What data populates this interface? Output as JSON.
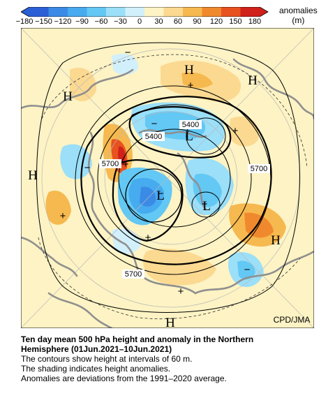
{
  "colorbar": {
    "ticks": [
      "−180",
      "−150",
      "−120",
      "−90",
      "−60",
      "−30",
      "0",
      "30",
      "60",
      "90",
      "120",
      "150",
      "180"
    ],
    "colors": [
      "#2a5fd6",
      "#3b8ae6",
      "#47abef",
      "#63c8f4",
      "#9bdff8",
      "#d2f0fb",
      "#fdf3c4",
      "#fbd991",
      "#f6b94f",
      "#f0892e",
      "#e8521f",
      "#d0211a"
    ],
    "label_line1": "anomalies",
    "label_line2": "(m)"
  },
  "map": {
    "contour_labels": [
      "5400",
      "5400",
      "5700",
      "5700",
      "5700"
    ],
    "high_marks": [
      "H",
      "H",
      "H",
      "H",
      "H",
      "H"
    ],
    "low_marks": [
      "L",
      "L",
      "L"
    ],
    "plus_marks": [
      "+",
      "+",
      "+",
      "+",
      "+",
      "+"
    ],
    "minus_marks": [
      "−",
      "−",
      "−",
      "−",
      "−",
      "−"
    ],
    "credit": "CPD/JMA"
  },
  "caption": {
    "title_line1": "Ten day mean 500 hPa height and anomaly in the Northern",
    "title_line2": "Hemisphere (01Jun.2021–10Jun.2021)",
    "line1": "The contours show height at intervals of 60 m.",
    "line2": "The shading indicates height anomalies.",
    "line3": "Anomalies are deviations from the 1991–2020 average."
  }
}
